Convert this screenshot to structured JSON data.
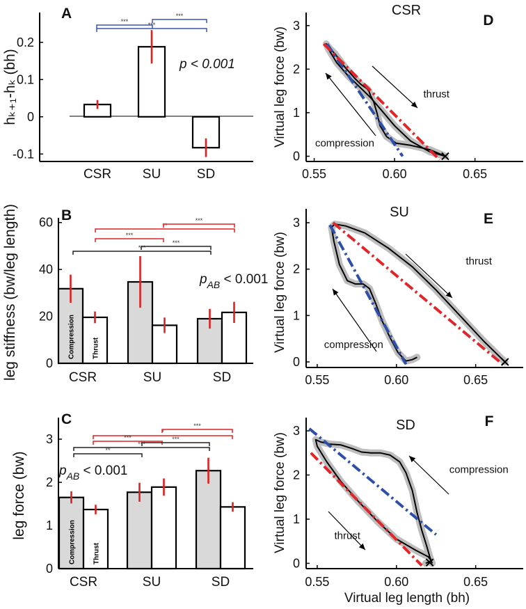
{
  "chart_data": [
    {
      "panel": "A",
      "type": "bar",
      "ylabel": "hₖ₊₁-hₖ (bh)",
      "categories": [
        "CSR",
        "SU",
        "SD"
      ],
      "values": [
        0.033,
        0.188,
        -0.083
      ],
      "errors": [
        0.012,
        0.045,
        0.025
      ],
      "ylim": [
        -0.12,
        0.28
      ],
      "yticks": [
        -0.1,
        0,
        0.1,
        0.2
      ],
      "ytick_labels": [
        "-0.1",
        "0",
        "0.1",
        "0.2"
      ],
      "stat_label": "p < 0.001",
      "significance": [
        {
          "from": "CSR",
          "to": "SU",
          "stars": "***",
          "color": "#3a56b0"
        },
        {
          "from": "CSR",
          "to": "SD",
          "stars": "***",
          "color": "#3a56b0"
        },
        {
          "from": "SU",
          "to": "SD",
          "stars": "***",
          "color": "#3a56b0"
        }
      ]
    },
    {
      "panel": "B",
      "type": "bar",
      "ylabel": "leg stiffness (bw/leg length)",
      "categories": [
        "CSR",
        "SU",
        "SD"
      ],
      "series": [
        {
          "name": "Compression",
          "values": [
            31.8,
            34.7,
            19.0
          ],
          "errors": [
            6.0,
            11.0,
            4.2
          ],
          "color": "#d9d9d9"
        },
        {
          "name": "Thrust",
          "values": [
            19.6,
            16.2,
            21.7
          ],
          "errors": [
            2.5,
            3.3,
            4.5
          ],
          "color": "#ffffff"
        }
      ],
      "ylim": [
        0,
        62
      ],
      "yticks": [
        0,
        20,
        40,
        60
      ],
      "ytick_labels": [
        "0",
        "20",
        "40",
        "60"
      ],
      "stat_label": "p_AB < 0.001",
      "stat_main": "p",
      "stat_sub": "AB",
      "stat_rest": " < 0.001",
      "significance": [
        {
          "from": "CSR-T",
          "to": "SU-T",
          "stars": "***",
          "color": "#e02020"
        },
        {
          "from": "CSR-T",
          "to": "SD-T",
          "stars": "**",
          "color": "#e02020"
        },
        {
          "from": "SU-T",
          "to": "SD-T",
          "stars": "***",
          "color": "#e02020"
        },
        {
          "from": "CSR-C",
          "to": "SU-C",
          "stars": "***",
          "color": "#222222"
        },
        {
          "from": "CSR-C",
          "to": "SD-C",
          "stars": "***",
          "color": "#222222"
        }
      ]
    },
    {
      "panel": "C",
      "type": "bar",
      "ylabel": "leg force (bw)",
      "categories": [
        "CSR",
        "SU",
        "SD"
      ],
      "series": [
        {
          "name": "Compression",
          "values": [
            1.65,
            1.77,
            2.27
          ],
          "errors": [
            0.14,
            0.22,
            0.3
          ],
          "color": "#d9d9d9"
        },
        {
          "name": "Thrust",
          "values": [
            1.37,
            1.89,
            1.43
          ],
          "errors": [
            0.11,
            0.2,
            0.11
          ],
          "color": "#ffffff"
        }
      ],
      "ylim": [
        0,
        3.5
      ],
      "yticks": [
        0,
        1,
        2,
        3
      ],
      "ytick_labels": [
        "0",
        "1",
        "2",
        "3"
      ],
      "stat_label": "p_AB < 0.001",
      "stat_main": "p",
      "stat_sub": "AB",
      "stat_rest": " < 0.001",
      "significance": [
        {
          "from": "CSR-T",
          "to": "SU-T",
          "stars": "***",
          "color": "#e02020"
        },
        {
          "from": "CSR-T",
          "to": "SD-T",
          "stars": "*",
          "color": "#e02020"
        },
        {
          "from": "SU-T",
          "to": "SD-T",
          "stars": "***",
          "color": "#e02020"
        },
        {
          "from": "CSR-C",
          "to": "SU-C",
          "stars": "***",
          "color": "#222222"
        },
        {
          "from": "CSR-C",
          "to": "SD-C",
          "stars": "***",
          "color": "#222222"
        },
        {
          "from": "CSR-C",
          "to": "SU-C",
          "stars": "**",
          "color": "#222222"
        }
      ]
    },
    {
      "panel": "D",
      "type": "line",
      "title": "CSR",
      "xlabel": "",
      "ylabel": "Virtual leg force (bw)",
      "xlim": [
        0.545,
        0.68
      ],
      "ylim": [
        -0.12,
        3.3
      ],
      "xticks": [
        0.55,
        0.6,
        0.65
      ],
      "xtick_labels": [
        "0.55",
        "0.60",
        "0.65"
      ],
      "yticks": [
        0,
        1,
        2,
        3
      ],
      "ytick_labels": [
        "0",
        "1",
        "2",
        "3"
      ],
      "curve": {
        "x": [
          0.6315,
          0.622,
          0.61,
          0.601,
          0.595,
          0.591,
          0.589,
          0.587,
          0.585,
          0.584,
          0.583,
          0.581,
          0.579,
          0.575,
          0.569,
          0.563,
          0.559,
          0.5575,
          0.559,
          0.564,
          0.571,
          0.578,
          0.585,
          0.592,
          0.6,
          0.61,
          0.622,
          0.6315
        ],
        "y": [
          0.0,
          0.15,
          0.25,
          0.3,
          0.45,
          0.7,
          1.0,
          1.25,
          1.4,
          1.5,
          1.55,
          1.6,
          1.65,
          1.8,
          2.05,
          2.35,
          2.5,
          2.58,
          2.45,
          2.15,
          1.85,
          1.6,
          1.35,
          1.05,
          0.7,
          0.35,
          0.1,
          0.0
        ]
      },
      "compression_fit": {
        "x": [
          0.558,
          0.605
        ],
        "y": [
          2.58,
          0.0
        ]
      },
      "thrust_fit": {
        "x": [
          0.556,
          0.628
        ],
        "y": [
          2.58,
          -0.08
        ]
      },
      "end_marker": {
        "x": 0.6315,
        "y": 0.0
      },
      "annotations": [
        {
          "text": "thrust",
          "x": 0.626,
          "y": 1.35
        },
        {
          "text": "compression",
          "x": 0.569,
          "y": 0.22
        }
      ]
    },
    {
      "panel": "E",
      "type": "line",
      "title": "SU",
      "xlabel": "",
      "ylabel": "Virtual leg force (bw)",
      "xlim": [
        0.543,
        0.68
      ],
      "ylim": [
        -0.12,
        3.3
      ],
      "xticks": [
        0.55,
        0.6,
        0.65
      ],
      "xtick_labels": [
        "0.55",
        "0.60",
        "0.65"
      ],
      "yticks": [
        0,
        1,
        2,
        3
      ],
      "ytick_labels": [
        "0",
        "1",
        "2",
        "3"
      ],
      "curve": {
        "x": [
          0.6685,
          0.655,
          0.64,
          0.625,
          0.61,
          0.595,
          0.58,
          0.568,
          0.561,
          0.559,
          0.5605,
          0.564,
          0.569,
          0.574,
          0.579,
          0.583,
          0.587,
          0.591,
          0.596,
          0.601,
          0.606,
          0.61,
          0.613
        ],
        "y": [
          0.0,
          0.45,
          1.0,
          1.55,
          2.05,
          2.45,
          2.78,
          2.93,
          2.97,
          2.9,
          2.6,
          2.1,
          1.75,
          1.68,
          1.68,
          1.58,
          1.25,
          0.88,
          0.52,
          0.2,
          0.02,
          0.05,
          0.1
        ]
      },
      "compression_fit": {
        "x": [
          0.558,
          0.606
        ],
        "y": [
          2.95,
          -0.05
        ]
      },
      "thrust_fit": {
        "x": [
          0.56,
          0.667
        ],
        "y": [
          3.0,
          -0.05
        ]
      },
      "end_marker": {
        "x": 0.6685,
        "y": 0.0
      },
      "annotations": [
        {
          "text": "thrust",
          "x": 0.652,
          "y": 2.1
        },
        {
          "text": "compression",
          "x": 0.573,
          "y": 0.3
        }
      ]
    },
    {
      "panel": "F",
      "type": "line",
      "title": "SD",
      "xlabel": "Virtual leg length (bh)",
      "ylabel": "Virtual leg force (bw)",
      "xlim": [
        0.543,
        0.68
      ],
      "ylim": [
        -0.12,
        3.3
      ],
      "xticks": [
        0.55,
        0.6,
        0.65
      ],
      "xtick_labels": [
        "0.55",
        "0.60",
        "0.65"
      ],
      "yticks": [
        0,
        1,
        2,
        3
      ],
      "ytick_labels": [
        "0",
        "1",
        "2",
        "3"
      ],
      "curve": {
        "x": [
          0.6185,
          0.622,
          0.62,
          0.612,
          0.6,
          0.588,
          0.576,
          0.565,
          0.556,
          0.55,
          0.549,
          0.552,
          0.558,
          0.565,
          0.572,
          0.578,
          0.584,
          0.59,
          0.596,
          0.602,
          0.606,
          0.61,
          0.613,
          0.616,
          0.619,
          0.621,
          0.6225
        ],
        "y": [
          0.0,
          0.06,
          0.15,
          0.3,
          0.55,
          0.95,
          1.4,
          1.85,
          2.3,
          2.65,
          2.8,
          2.75,
          2.7,
          2.68,
          2.6,
          2.52,
          2.5,
          2.5,
          2.45,
          2.3,
          2.05,
          1.65,
          1.15,
          0.75,
          0.4,
          0.15,
          0.0
        ]
      },
      "compression_fit": {
        "x": [
          0.545,
          0.625
        ],
        "y": [
          3.05,
          0.65
        ]
      },
      "thrust_fit": {
        "x": [
          0.546,
          0.616
        ],
        "y": [
          2.5,
          -0.05
        ]
      },
      "end_marker": {
        "x": 0.621,
        "y": 0.02
      },
      "annotations": [
        {
          "text": "compression",
          "x": 0.652,
          "y": 2.05
        },
        {
          "text": "thrust",
          "x": 0.569,
          "y": 0.55
        }
      ]
    }
  ]
}
